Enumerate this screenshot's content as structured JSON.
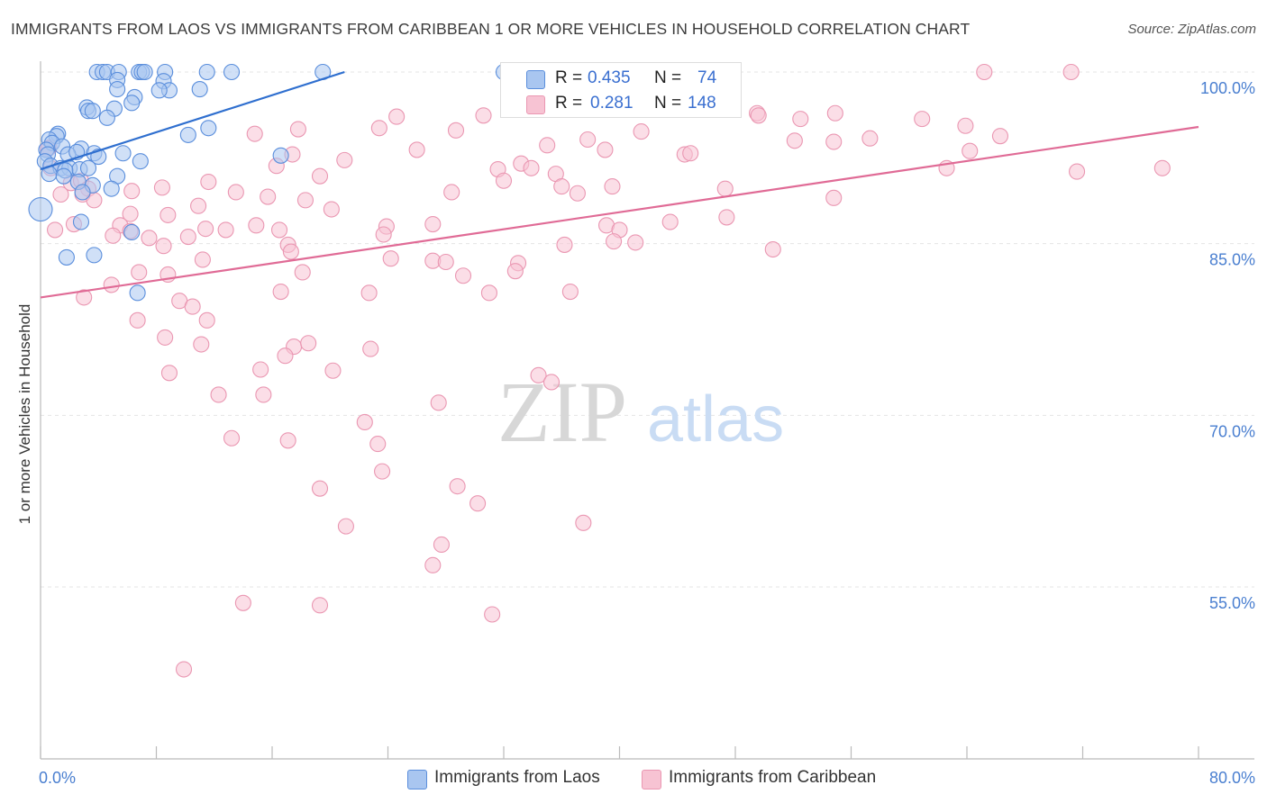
{
  "header": {
    "title": "IMMIGRANTS FROM LAOS VS IMMIGRANTS FROM CARIBBEAN 1 OR MORE VEHICLES IN HOUSEHOLD CORRELATION CHART",
    "source": "Source: ZipAtlas.com"
  },
  "watermark": {
    "zip": "ZIP",
    "atlas": "atlas"
  },
  "stats": {
    "laos": {
      "r_label": "R =",
      "r_value": "0.435",
      "n_label": "N =",
      "n_value": "74"
    },
    "caribbean": {
      "r_label": "R =",
      "r_value": "0.281",
      "n_label": "N =",
      "n_value": "148"
    }
  },
  "legend": {
    "laos": "Immigrants from Laos",
    "caribbean": "Immigrants from Caribbean"
  },
  "colors": {
    "laos_fill": "#a9c6f0",
    "laos_stroke": "#5a8edc",
    "laos_line": "#2f6fcf",
    "caribbean_fill": "#f7c3d3",
    "caribbean_stroke": "#ea97b2",
    "caribbean_line": "#e06b96",
    "tick_text": "#4a7fd0",
    "grid": "#e4e4e4"
  },
  "chart_data": {
    "type": "scatter",
    "title": "IMMIGRANTS FROM LAOS VS IMMIGRANTS FROM CARIBBEAN 1 OR MORE VEHICLES IN HOUSEHOLD CORRELATION CHART",
    "xlabel": "",
    "ylabel": "1 or more Vehicles in Household",
    "xlim": [
      0,
      80
    ],
    "ylim": [
      40,
      101.5
    ],
    "x_tick_labels": [
      "0.0%",
      "80.0%"
    ],
    "y_ticks": [
      55,
      70,
      85,
      100
    ],
    "y_tick_labels": [
      "55.0%",
      "70.0%",
      "85.0%",
      "100.0%"
    ],
    "grid": true,
    "series": [
      {
        "name": "Immigrants from Laos",
        "trend": {
          "x0": 0.0,
          "y0": 91.5,
          "x1": 21.0,
          "y1": 100.0
        },
        "points": [
          [
            3.9,
            100
          ],
          [
            4.3,
            100
          ],
          [
            4.6,
            100
          ],
          [
            5.4,
            100
          ],
          [
            6.8,
            100
          ],
          [
            7.0,
            100
          ],
          [
            7.2,
            100
          ],
          [
            8.6,
            100
          ],
          [
            11.5,
            100
          ],
          [
            13.2,
            100
          ],
          [
            19.5,
            100
          ],
          [
            5.3,
            99.3
          ],
          [
            8.5,
            99.2
          ],
          [
            5.3,
            98.5
          ],
          [
            8.9,
            98.4
          ],
          [
            11.0,
            98.5
          ],
          [
            8.2,
            98.4
          ],
          [
            6.5,
            97.8
          ],
          [
            6.3,
            97.3
          ],
          [
            5.1,
            96.8
          ],
          [
            3.2,
            96.9
          ],
          [
            3.3,
            96.6
          ],
          [
            3.6,
            96.6
          ],
          [
            4.6,
            96.0
          ],
          [
            11.6,
            95.1
          ],
          [
            10.2,
            94.5
          ],
          [
            1.2,
            94.6
          ],
          [
            1.1,
            94.4
          ],
          [
            0.6,
            94.1
          ],
          [
            0.8,
            93.8
          ],
          [
            0.4,
            93.2
          ],
          [
            1.5,
            93.5
          ],
          [
            2.8,
            93.3
          ],
          [
            0.5,
            92.8
          ],
          [
            1.9,
            92.8
          ],
          [
            2.5,
            93.0
          ],
          [
            3.7,
            92.9
          ],
          [
            4.0,
            92.6
          ],
          [
            5.7,
            92.9
          ],
          [
            16.6,
            92.7
          ],
          [
            0.3,
            92.2
          ],
          [
            0.7,
            91.8
          ],
          [
            1.4,
            91.6
          ],
          [
            2.0,
            91.6
          ],
          [
            2.7,
            91.5
          ],
          [
            1.7,
            91.4
          ],
          [
            3.3,
            91.6
          ],
          [
            6.9,
            92.2
          ],
          [
            0.6,
            91.1
          ],
          [
            1.6,
            90.9
          ],
          [
            5.3,
            90.9
          ],
          [
            2.6,
            90.4
          ],
          [
            3.6,
            90.1
          ],
          [
            4.9,
            89.8
          ],
          [
            2.9,
            89.5
          ],
          [
            0.0,
            88.0
          ],
          [
            2.8,
            86.9
          ],
          [
            6.3,
            86.0
          ],
          [
            1.8,
            83.8
          ],
          [
            3.7,
            84.0
          ],
          [
            6.7,
            80.7
          ],
          [
            32.0,
            100
          ]
        ]
      },
      {
        "name": "Immigrants from Caribbean",
        "trend": {
          "x0": 0.0,
          "y0": 80.3,
          "x1": 80.0,
          "y1": 95.2
        },
        "points": [
          [
            65.2,
            100
          ],
          [
            71.2,
            100
          ],
          [
            44.8,
            98.1
          ],
          [
            49.5,
            96.4
          ],
          [
            49.6,
            96.2
          ],
          [
            54.9,
            96.4
          ],
          [
            52.5,
            95.9
          ],
          [
            60.9,
            95.9
          ],
          [
            30.6,
            96.2
          ],
          [
            24.6,
            96.1
          ],
          [
            17.8,
            95.0
          ],
          [
            14.8,
            94.6
          ],
          [
            28.7,
            94.9
          ],
          [
            23.4,
            95.1
          ],
          [
            41.5,
            94.8
          ],
          [
            37.8,
            94.1
          ],
          [
            63.9,
            95.3
          ],
          [
            57.3,
            94.2
          ],
          [
            54.8,
            93.9
          ],
          [
            66.3,
            94.4
          ],
          [
            52.1,
            94.0
          ],
          [
            35.0,
            93.6
          ],
          [
            0.6,
            93.4
          ],
          [
            0.5,
            93.3
          ],
          [
            26.0,
            93.2
          ],
          [
            39.0,
            93.2
          ],
          [
            44.5,
            92.8
          ],
          [
            44.9,
            92.9
          ],
          [
            64.2,
            93.1
          ],
          [
            17.4,
            92.8
          ],
          [
            21.0,
            92.3
          ],
          [
            33.2,
            92.0
          ],
          [
            33.9,
            91.6
          ],
          [
            31.6,
            91.5
          ],
          [
            0.7,
            91.6
          ],
          [
            62.6,
            91.6
          ],
          [
            71.6,
            91.3
          ],
          [
            77.5,
            91.6
          ],
          [
            35.6,
            91.1
          ],
          [
            19.3,
            90.9
          ],
          [
            32.0,
            90.5
          ],
          [
            36.0,
            90.0
          ],
          [
            39.5,
            90.0
          ],
          [
            2.1,
            90.3
          ],
          [
            2.8,
            90.5
          ],
          [
            3.3,
            89.8
          ],
          [
            8.4,
            89.9
          ],
          [
            11.6,
            90.4
          ],
          [
            2.9,
            89.3
          ],
          [
            1.4,
            89.3
          ],
          [
            3.7,
            88.8
          ],
          [
            6.3,
            89.6
          ],
          [
            13.5,
            89.5
          ],
          [
            28.4,
            89.5
          ],
          [
            37.1,
            89.4
          ],
          [
            47.3,
            89.8
          ],
          [
            54.8,
            89.0
          ],
          [
            15.7,
            89.1
          ],
          [
            18.3,
            88.8
          ],
          [
            10.9,
            88.3
          ],
          [
            20.1,
            88.0
          ],
          [
            6.2,
            87.6
          ],
          [
            8.8,
            87.5
          ],
          [
            2.3,
            86.7
          ],
          [
            5.5,
            86.6
          ],
          [
            6.2,
            86.1
          ],
          [
            10.2,
            85.6
          ],
          [
            11.4,
            86.3
          ],
          [
            12.8,
            86.2
          ],
          [
            14.9,
            86.6
          ],
          [
            23.9,
            86.5
          ],
          [
            27.1,
            86.7
          ],
          [
            39.1,
            86.6
          ],
          [
            40.0,
            86.2
          ],
          [
            43.5,
            86.9
          ],
          [
            47.4,
            87.3
          ],
          [
            1.0,
            86.2
          ],
          [
            5.0,
            85.7
          ],
          [
            7.5,
            85.5
          ],
          [
            16.5,
            86.2
          ],
          [
            23.7,
            85.8
          ],
          [
            39.6,
            85.2
          ],
          [
            41.1,
            85.1
          ],
          [
            17.1,
            84.9
          ],
          [
            8.5,
            84.8
          ],
          [
            36.2,
            84.9
          ],
          [
            50.6,
            84.5
          ],
          [
            17.3,
            84.3
          ],
          [
            11.2,
            83.6
          ],
          [
            24.2,
            83.7
          ],
          [
            27.1,
            83.5
          ],
          [
            28.0,
            83.4
          ],
          [
            33.0,
            83.3
          ],
          [
            6.8,
            82.5
          ],
          [
            8.8,
            82.3
          ],
          [
            18.1,
            82.5
          ],
          [
            29.2,
            82.2
          ],
          [
            32.8,
            82.6
          ],
          [
            4.9,
            81.4
          ],
          [
            3.0,
            80.3
          ],
          [
            9.6,
            80.0
          ],
          [
            16.6,
            80.8
          ],
          [
            22.7,
            80.7
          ],
          [
            31.0,
            80.7
          ],
          [
            36.6,
            80.8
          ],
          [
            10.5,
            79.5
          ],
          [
            11.5,
            78.3
          ],
          [
            6.7,
            78.3
          ],
          [
            8.6,
            76.8
          ],
          [
            11.1,
            76.2
          ],
          [
            17.5,
            76.0
          ],
          [
            18.5,
            76.3
          ],
          [
            22.8,
            75.8
          ],
          [
            16.9,
            75.2
          ],
          [
            8.9,
            73.7
          ],
          [
            15.2,
            74.0
          ],
          [
            20.2,
            73.9
          ],
          [
            34.4,
            73.5
          ],
          [
            35.3,
            72.9
          ],
          [
            12.3,
            71.8
          ],
          [
            15.4,
            71.8
          ],
          [
            27.5,
            71.1
          ],
          [
            22.4,
            69.4
          ],
          [
            13.2,
            68.0
          ],
          [
            17.1,
            67.8
          ],
          [
            23.3,
            67.5
          ],
          [
            23.6,
            65.1
          ],
          [
            28.8,
            63.8
          ],
          [
            19.3,
            63.6
          ],
          [
            30.2,
            62.3
          ],
          [
            37.5,
            60.6
          ],
          [
            21.1,
            60.3
          ],
          [
            27.7,
            58.7
          ],
          [
            27.1,
            56.9
          ],
          [
            14.0,
            53.6
          ],
          [
            19.3,
            53.4
          ],
          [
            31.2,
            52.6
          ],
          [
            9.9,
            47.8
          ],
          [
            16.3,
            91.8
          ]
        ]
      }
    ]
  }
}
